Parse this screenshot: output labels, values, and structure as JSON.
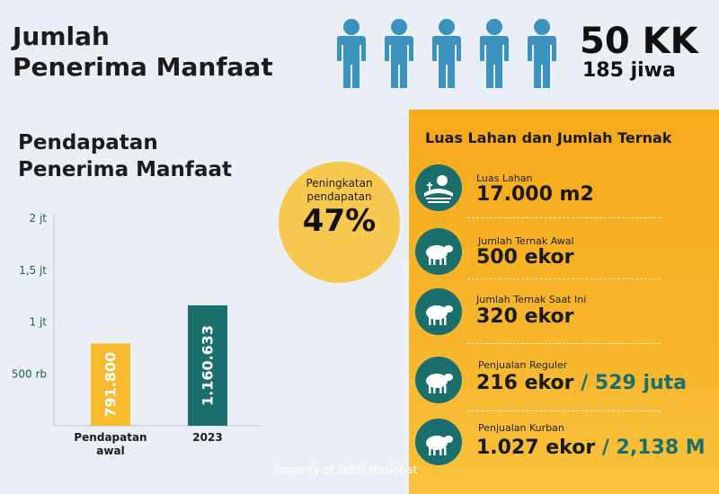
{
  "header": {
    "title_line1": "Jumlah",
    "title_line2": "Penerima Manfaat",
    "people_icon": "person-icon",
    "kk": "50 KK",
    "jiwa": "185 jiwa"
  },
  "income": {
    "title_line1": "Pendapatan",
    "title_line2": "Penerima Manfaat"
  },
  "chart_data": {
    "type": "bar",
    "categories": [
      "Pendapatan awal",
      "2023"
    ],
    "values": [
      791800,
      1160633
    ],
    "value_labels": [
      "791.800",
      "1.160.633"
    ],
    "bar_colors": [
      "#f7bb2d",
      "#1b6f6c"
    ],
    "ylim": [
      0,
      2000000
    ],
    "yticks": [
      {
        "value": 500000,
        "label": "500 rb"
      },
      {
        "value": 1000000,
        "label": "1 jt"
      },
      {
        "value": 1500000,
        "label": "1,5 jt"
      },
      {
        "value": 2000000,
        "label": "2 jt"
      }
    ],
    "grid": false
  },
  "increase": {
    "label_line1": "Peningkatan",
    "label_line2": "pendapatan",
    "value": "47%"
  },
  "land": {
    "title": "Luas Lahan dan Jumlah Ternak",
    "items": [
      {
        "icon": "farmland-icon",
        "label": "Luas Lahan",
        "value": "17.000 m2",
        "extra": ""
      },
      {
        "icon": "sheep-icon",
        "label": "Jumlah Ternak Awal",
        "value": "500 ekor",
        "extra": ""
      },
      {
        "icon": "sheep-icon",
        "label": "Jumlah Ternak Saat Ini",
        "value": "320 ekor",
        "extra": ""
      },
      {
        "icon": "sheep-icon",
        "label": "Penjualan Reguler",
        "value": "216 ekor",
        "extra": "/ 529 juta"
      },
      {
        "icon": "sheep-icon",
        "label": "Penjualan Kurban",
        "value": "1.027 ekor",
        "extra": "/ 2,138 M"
      }
    ]
  },
  "watermark": "Property of @BSI Maslahat",
  "colors": {
    "teal": "#1b6f6c",
    "orange": "#f6a91b",
    "yellow": "#f7c84f",
    "person": "#3a92bd"
  }
}
